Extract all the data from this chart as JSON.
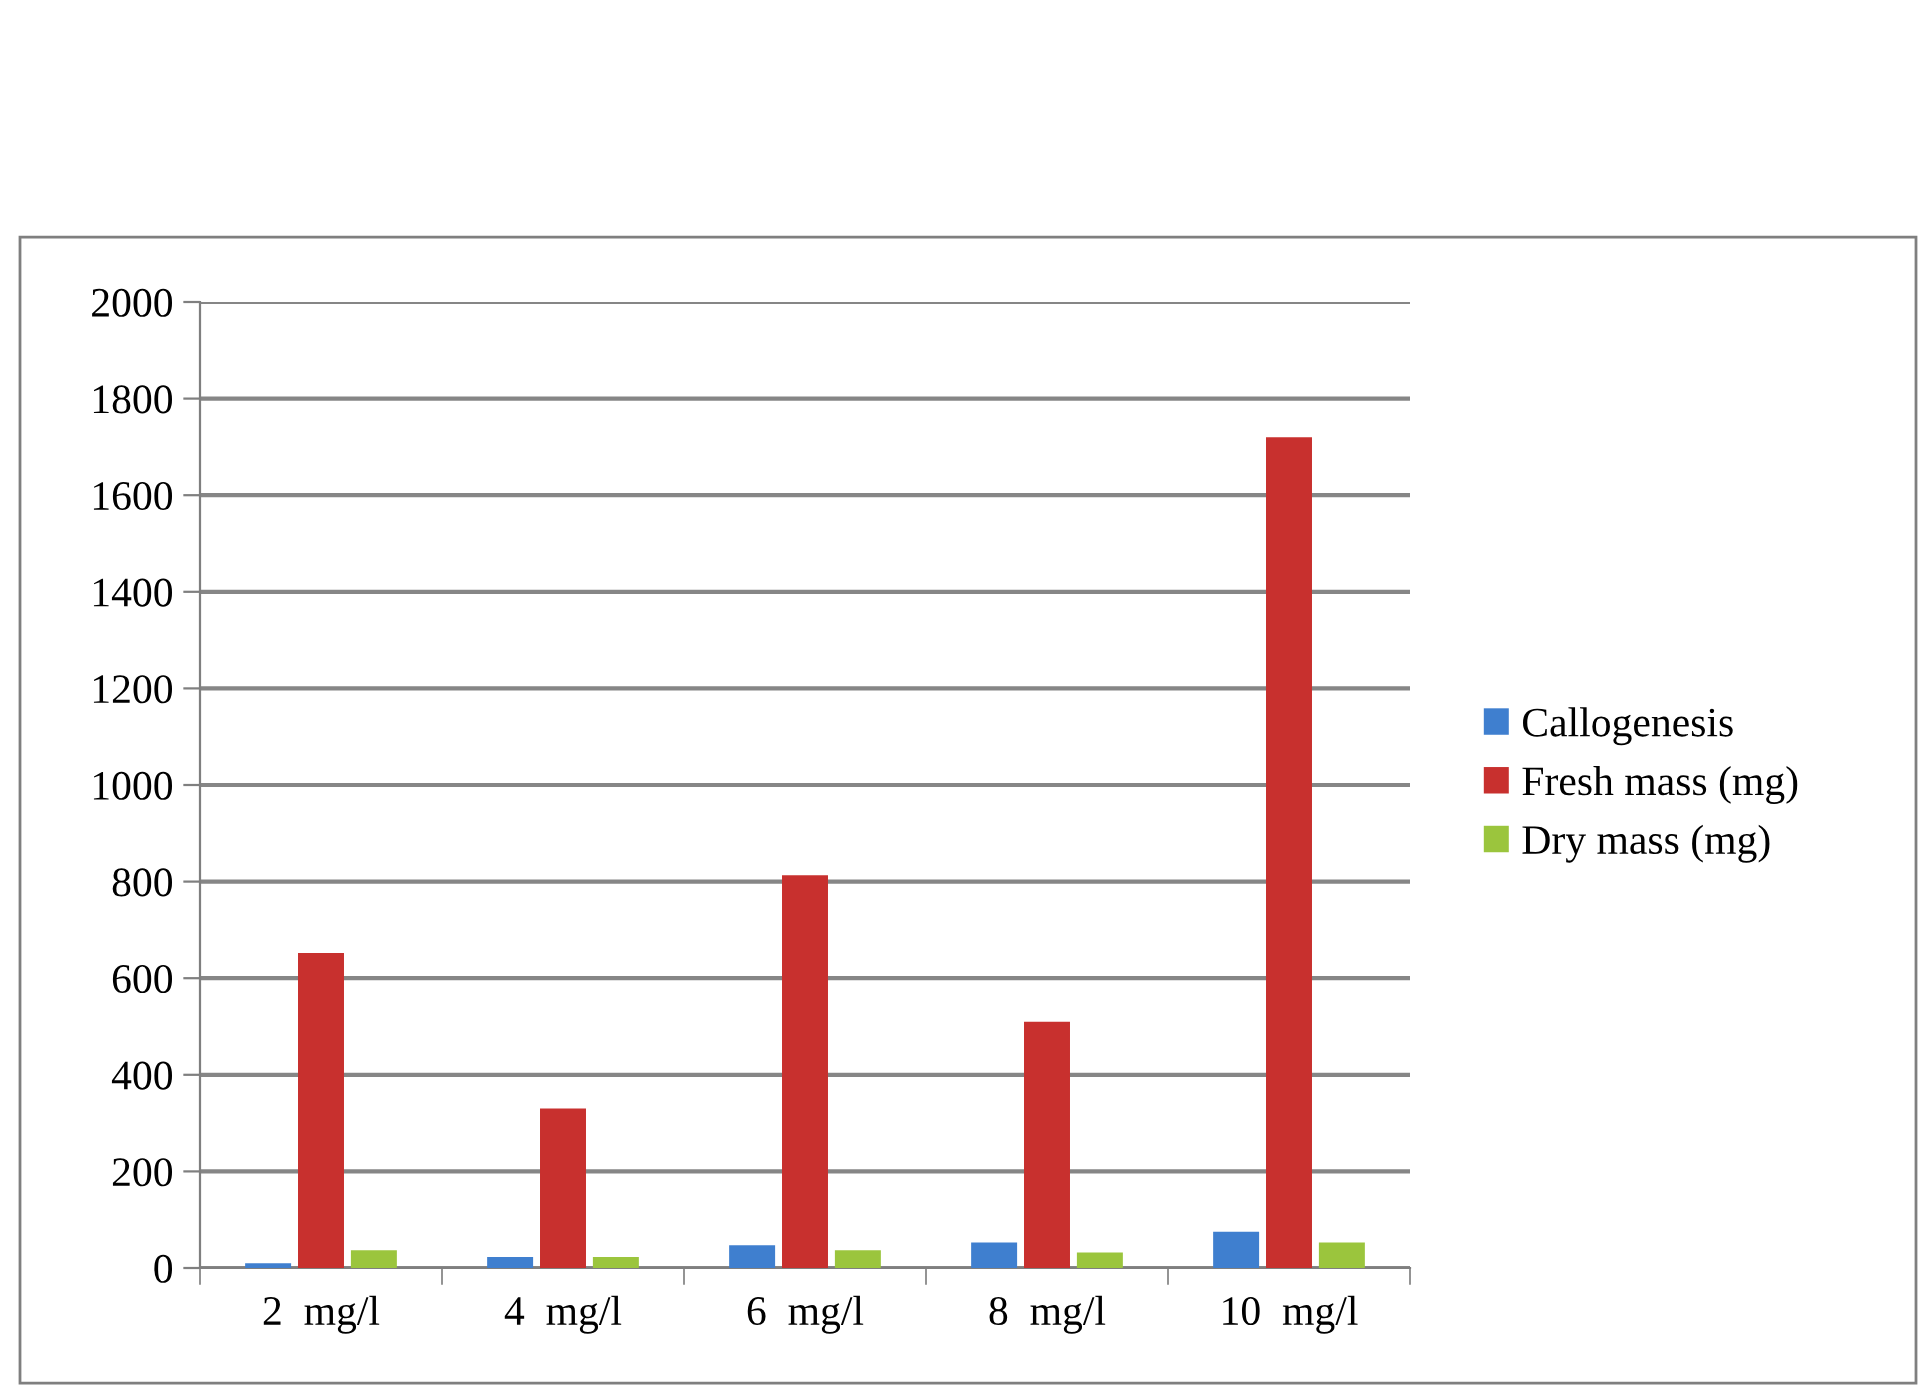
{
  "chart_data": {
    "type": "bar",
    "categories": [
      "2  mg/l",
      "4  mg/l",
      "6  mg/l",
      "8  mg/l",
      "10  mg/l"
    ],
    "series": [
      {
        "name": "Callogenesis",
        "color": "#3f7fcf",
        "values": [
          10,
          23,
          47,
          53,
          75
        ]
      },
      {
        "name": "Fresh mass (mg)",
        "color": "#c8302e",
        "values": [
          652,
          330,
          813,
          510,
          1720
        ]
      },
      {
        "name": "Dry mass (mg)",
        "color": "#9bc53d",
        "values": [
          37,
          23,
          37,
          32,
          53
        ]
      }
    ],
    "ylim": [
      0,
      2000
    ],
    "yticks": [
      0,
      200,
      400,
      600,
      800,
      1000,
      1200,
      1400,
      1600,
      1800,
      2000
    ],
    "grid": "y",
    "legend": "right"
  }
}
